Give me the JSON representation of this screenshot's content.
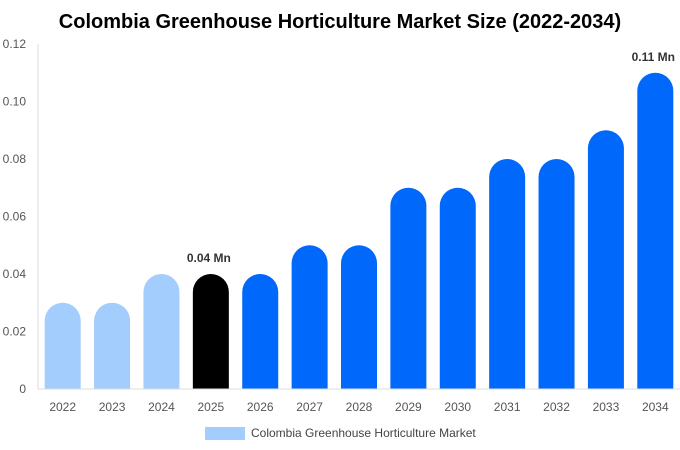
{
  "chart_data": {
    "type": "bar",
    "title": "Colombia Greenhouse Horticulture Market Size (2022-2034)",
    "categories": [
      "2022",
      "2023",
      "2024",
      "2025",
      "2026",
      "2027",
      "2028",
      "2029",
      "2030",
      "2031",
      "2032",
      "2033",
      "2034"
    ],
    "series": [
      {
        "name": "Colombia Greenhouse Horticulture Market",
        "values": [
          0.03,
          0.03,
          0.04,
          0.04,
          0.04,
          0.05,
          0.05,
          0.07,
          0.07,
          0.08,
          0.08,
          0.09,
          0.11
        ]
      }
    ],
    "ylim": [
      0,
      0.12
    ],
    "yticks": [
      "0",
      "0.02",
      "0.04",
      "0.06",
      "0.08",
      "0.10",
      "0.12"
    ],
    "ytick_values": [
      0,
      0.02,
      0.04,
      0.06,
      0.08,
      0.1,
      0.12
    ],
    "data_labels": [
      {
        "category": "2025",
        "text": "0.04 Mn"
      },
      {
        "category": "2034",
        "text": "0.11 Mn"
      }
    ],
    "bar_colors": {
      "historical": "#a3cdfc",
      "base_year": "#000000",
      "forecast": "#0068fa"
    },
    "historical_categories": [
      "2022",
      "2023",
      "2024"
    ],
    "base_year_category": "2025",
    "legend": {
      "label": "Colombia Greenhouse Horticulture Market",
      "color": "#a3cdfc",
      "position": "bottom"
    },
    "grid": false
  }
}
